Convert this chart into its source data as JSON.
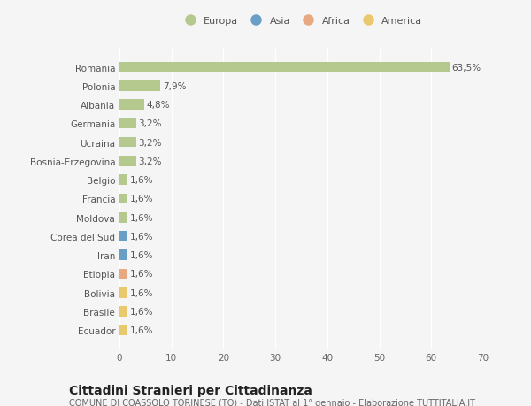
{
  "categories": [
    "Romania",
    "Polonia",
    "Albania",
    "Germania",
    "Ucraina",
    "Bosnia-Erzegovina",
    "Belgio",
    "Francia",
    "Moldova",
    "Corea del Sud",
    "Iran",
    "Etiopia",
    "Bolivia",
    "Brasile",
    "Ecuador"
  ],
  "values": [
    63.5,
    7.9,
    4.8,
    3.2,
    3.2,
    3.2,
    1.6,
    1.6,
    1.6,
    1.6,
    1.6,
    1.6,
    1.6,
    1.6,
    1.6
  ],
  "labels": [
    "63,5%",
    "7,9%",
    "4,8%",
    "3,2%",
    "3,2%",
    "3,2%",
    "1,6%",
    "1,6%",
    "1,6%",
    "1,6%",
    "1,6%",
    "1,6%",
    "1,6%",
    "1,6%",
    "1,6%"
  ],
  "bar_colors": [
    "#b5c98e",
    "#b5c98e",
    "#b5c98e",
    "#b5c98e",
    "#b5c98e",
    "#b5c98e",
    "#b5c98e",
    "#b5c98e",
    "#b5c98e",
    "#6b9ec4",
    "#6b9ec4",
    "#e8a882",
    "#e8c96e",
    "#e8c96e",
    "#e8c96e"
  ],
  "legend_entries": [
    {
      "label": "Europa",
      "color": "#b5c98e"
    },
    {
      "label": "Asia",
      "color": "#6b9ec4"
    },
    {
      "label": "Africa",
      "color": "#e8a882"
    },
    {
      "label": "America",
      "color": "#e8c96e"
    }
  ],
  "xlim": [
    0,
    70
  ],
  "xticks": [
    0,
    10,
    20,
    30,
    40,
    50,
    60,
    70
  ],
  "background_color": "#f5f5f5",
  "title": "Cittadini Stranieri per Cittadinanza",
  "subtitle": "COMUNE DI COASSOLO TORINESE (TO) - Dati ISTAT al 1° gennaio - Elaborazione TUTTITALIA.IT",
  "grid_color": "#ffffff",
  "title_fontsize": 10,
  "subtitle_fontsize": 7,
  "label_fontsize": 7.5,
  "tick_fontsize": 7.5,
  "legend_fontsize": 8
}
